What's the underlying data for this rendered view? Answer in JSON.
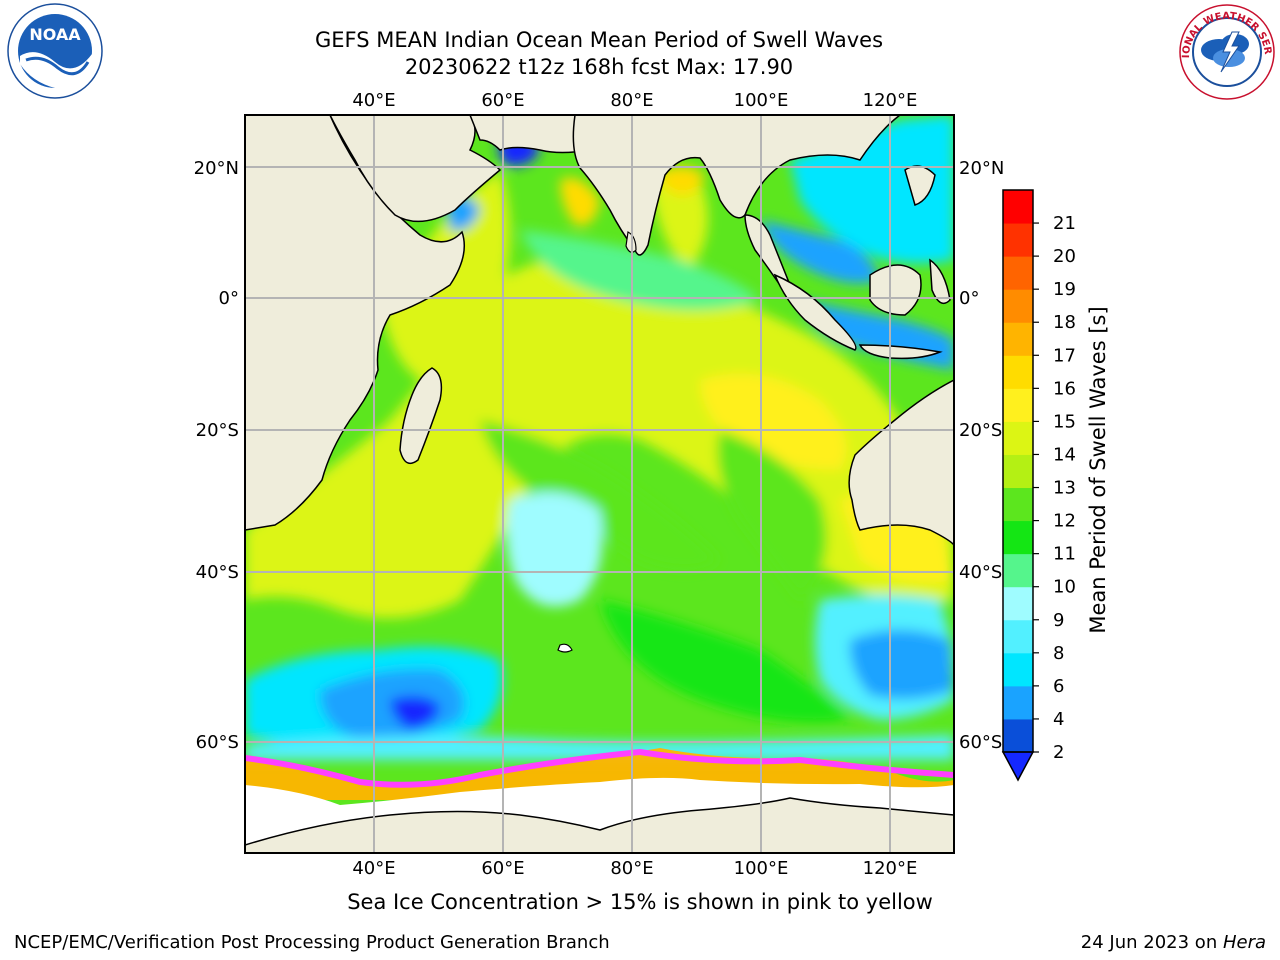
{
  "title": {
    "line1": "GEFS MEAN Indian Ocean Mean Period of Swell Waves",
    "line2": "20230622 t12z 168h fcst   Max: 17.90"
  },
  "map": {
    "lon_labels": [
      "40°E",
      "60°E",
      "80°E",
      "100°E",
      "120°E"
    ],
    "lat_labels_left": [
      "20°N",
      "0°",
      "20°S",
      "40°S",
      "60°S"
    ],
    "lat_labels_right": [
      "20°N",
      "0°",
      "20°S",
      "40°S",
      "60°S"
    ],
    "lon_range": [
      20,
      130
    ],
    "lat_range": [
      -70,
      28
    ],
    "colors": {
      "land": "#efeddb",
      "ice_region": "#ffffff",
      "grid": "#b4b4b4"
    }
  },
  "colorbar": {
    "title": "Mean Period of Swell Waves [s]",
    "ticks": [
      "2",
      "4",
      "6",
      "8",
      "9",
      "10",
      "11",
      "12",
      "13",
      "14",
      "15",
      "16",
      "17",
      "18",
      "19",
      "20",
      "21"
    ],
    "colors": [
      "#0a4fd9",
      "#1aa3ff",
      "#00e6ff",
      "#52f0ff",
      "#9ffcff",
      "#55f58c",
      "#14e614",
      "#5ce61e",
      "#b4f014",
      "#dcf514",
      "#fff01e",
      "#ffdc00",
      "#ffb400",
      "#ff8c00",
      "#ff6400",
      "#ff3200",
      "#ff0000"
    ],
    "extend_color": "#1428ff"
  },
  "subtitle": "Sea Ice Concentration > 15% is shown in pink to yellow",
  "footer": {
    "left": "NCEP/EMC/Verification Post Processing Product Generation Branch",
    "date": "24 Jun 2023 on ",
    "host": "Hera"
  },
  "logos": {
    "noaa": "NOAA",
    "nws": "NATIONAL WEATHER SERVICE"
  }
}
